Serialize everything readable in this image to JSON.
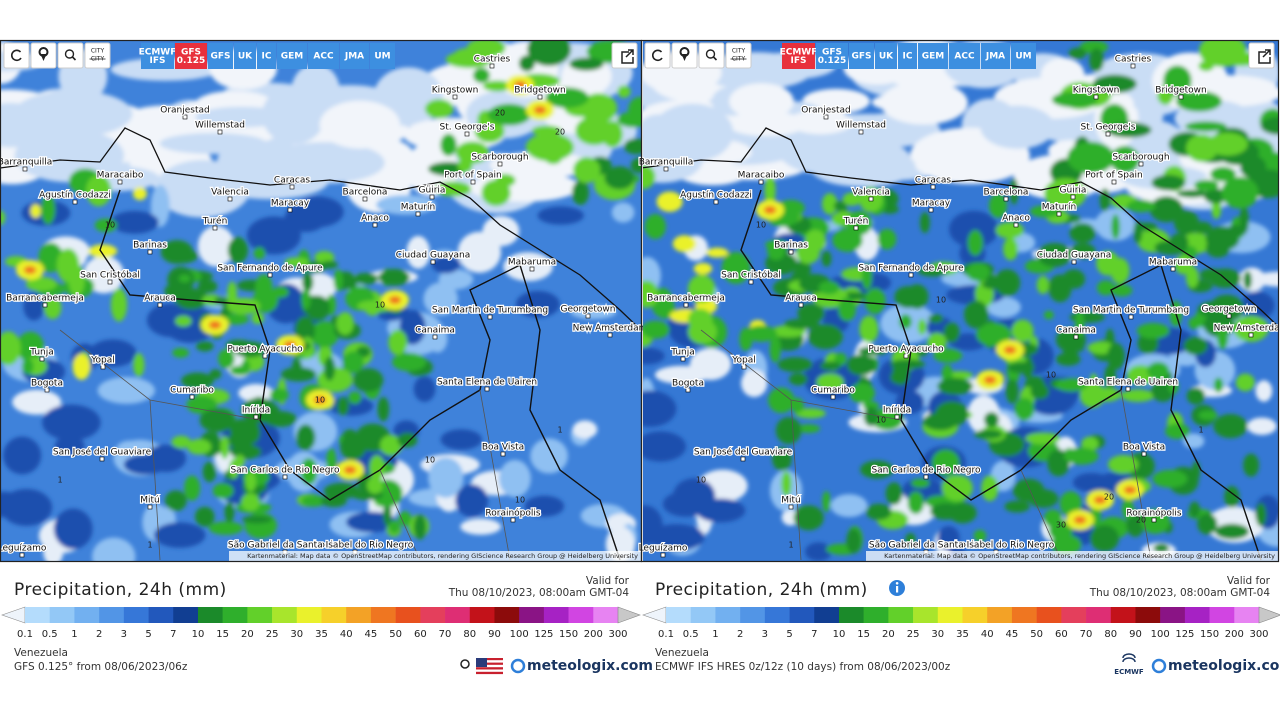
{
  "legend": {
    "title": "Precipitation, 24h (mm)",
    "valid_label": "Valid for",
    "valid_time": "Thu 08/10/2023, 08:00am GMT-04",
    "ticks": [
      "0.1",
      "0.5",
      "1",
      "2",
      "3",
      "5",
      "7",
      "10",
      "15",
      "20",
      "25",
      "30",
      "35",
      "40",
      "45",
      "50",
      "60",
      "70",
      "80",
      "90",
      "100",
      "125",
      "150",
      "200",
      "300"
    ],
    "colors": [
      "#b4dcfc",
      "#93c8f6",
      "#72b0f0",
      "#5295e6",
      "#3677d8",
      "#2258bc",
      "#113e92",
      "#1b8a2a",
      "#2faf2c",
      "#62d02a",
      "#a8e52c",
      "#eaf12c",
      "#f6d02a",
      "#f3a226",
      "#ef7621",
      "#e8511e",
      "#e43f5c",
      "#de2e74",
      "#c3121a",
      "#8c0b0b",
      "#8a1485",
      "#a622c4",
      "#d145e2",
      "#e783f2"
    ],
    "under_color": "#eef4fb",
    "over_color": "#c8c8c8",
    "brand": "meteologix.com"
  },
  "city_toggle": "CITY",
  "attribution": "Kartenmaterial: Map data © OpenStreetMap contributors, rendering GIScience Research Group @ Heidelberg University",
  "cities": [
    "Castries",
    "Oranjestad",
    "Willemstad",
    "Kingstown",
    "Bridgetown",
    "St. George's",
    "Scarborough",
    "Barranquilla",
    "Maracaibo",
    "Caracas",
    "Port of Spain",
    "Agustín Codazzi",
    "Valencia",
    "Barcelona",
    "Güiria",
    "Maracay",
    "Maturín",
    "Turén",
    "Anaco",
    "Barinas",
    "Ciudad Guayana",
    "San Fernando de Apure",
    "Mabaruma",
    "San Cristóbal",
    "Arauca",
    "Barrancabermeja",
    "San Martin de Turumbang",
    "Georgetown",
    "New Amsterdam",
    "Canaima",
    "Tunja",
    "Puerto Ayacucho",
    "Yopal",
    "Bogota",
    "Santa Elena de Uairen",
    "Cumaribo",
    "Inírida",
    "San José del Guaviare",
    "Boa Vista",
    "San Carlos de Rio Negro",
    "Mitú",
    "Rorainópolis",
    "São Gabriel da Cachoeira",
    "Santa Isabel do Rio Negro",
    "Leguízamo"
  ],
  "panels": [
    {
      "models": [
        {
          "lines": [
            "ECMWF",
            "IFS"
          ]
        },
        {
          "lines": [
            "GFS",
            "0.125"
          ]
        },
        {
          "lines": [
            "GFS"
          ]
        },
        {
          "lines": [
            "UK"
          ]
        },
        {
          "lines": [
            "IC"
          ]
        },
        {
          "lines": [
            "GEM"
          ]
        },
        {
          "lines": [
            "ACC"
          ]
        },
        {
          "lines": [
            "JMA"
          ]
        },
        {
          "lines": [
            "UM"
          ]
        }
      ],
      "active_model": 1,
      "region": "Venezuela",
      "source": "GFS 0.125° from 08/06/2023/06z",
      "contour_labels": [
        "20",
        "20",
        "10",
        "10",
        "10",
        "10",
        "1",
        "1",
        "10",
        "1"
      ]
    },
    {
      "models": [
        {
          "lines": [
            "ECMWF",
            "IFS"
          ]
        },
        {
          "lines": [
            "GFS",
            "0.125"
          ]
        },
        {
          "lines": [
            "GFS"
          ]
        },
        {
          "lines": [
            "UK"
          ]
        },
        {
          "lines": [
            "IC"
          ]
        },
        {
          "lines": [
            "GEM"
          ]
        },
        {
          "lines": [
            "ACC"
          ]
        },
        {
          "lines": [
            "JMA"
          ]
        },
        {
          "lines": [
            "UM"
          ]
        }
      ],
      "active_model": 0,
      "region": "Venezuela",
      "source": "ECMWF IFS HRES 0z/12z (10 days) from 08/06/2023/00z",
      "badge": "ECMWF",
      "contour_labels": [
        "20",
        "20",
        "30",
        "10",
        "10",
        "10",
        "1",
        "10",
        "10",
        "1"
      ]
    }
  ]
}
